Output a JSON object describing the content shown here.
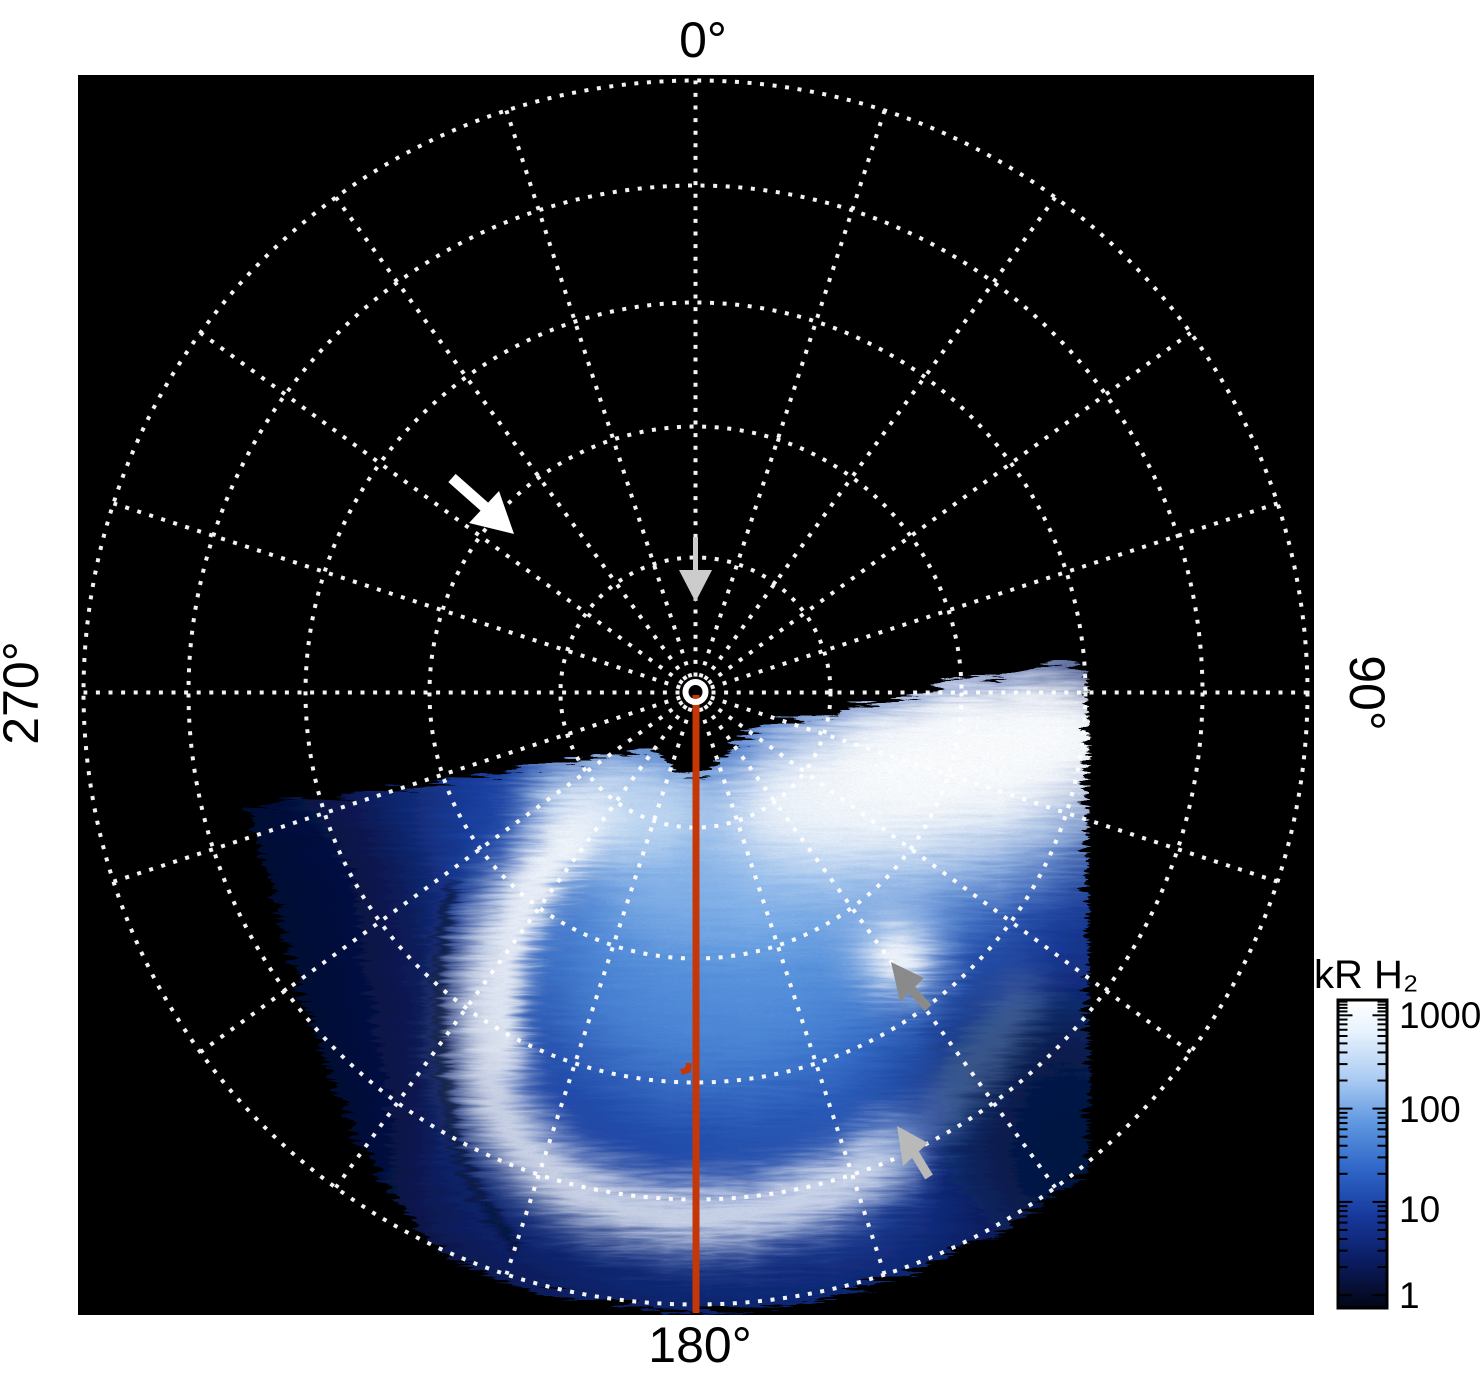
{
  "figure": {
    "plot": {
      "angle_labels": {
        "top": "0°",
        "right": "90°",
        "bottom": "180°",
        "left": "270°"
      }
    },
    "colorbar": {
      "title": "kR H₂",
      "ticks": [
        "1000",
        "100",
        "10",
        "1"
      ]
    }
  },
  "chart_data": {
    "type": "heatmap",
    "projection": "polar azimuthal, pole at center, limb at outer dotted circle",
    "title": "",
    "angular_ticks_deg": [
      0,
      90,
      180,
      270
    ],
    "angular_tick_labels": [
      "0°",
      "90°",
      "180°",
      "270°"
    ],
    "azimuthal_grid_step_deg": 18,
    "radial_circles_fraction_of_limb": [
      0.22,
      0.43,
      0.64,
      0.83,
      1.0
    ],
    "grid_style": "white dotted lines on black background",
    "colorbar": {
      "label": "kR H₂",
      "scale": "log",
      "tick_values": [
        1000,
        100,
        10,
        1
      ],
      "min": 1,
      "max": 1000,
      "colormap": "black → dark navy → blue → light blue → white"
    },
    "image_content": "H2 auroral emission image filling the sector from ~250° through 180° to ~95°: bright white main auroral arc (C-shape) left of the 180° meridian, very bright patch along the poleward boundary right of the pole, isolated bright auroral spot in the 90°–135° sector, diffuse blue emission fading to dark near the limb, jagged comb-like poleward data boundary",
    "annotations": [
      {
        "name": "white-arrow",
        "description": "large white arrow in upper-left quadrant pointing down-right toward the pole"
      },
      {
        "name": "pole-pointer-arrow",
        "color": "#cccccc",
        "description": "gray arrow on the 0° meridian pointing down at the pole marker"
      },
      {
        "name": "bright-spot-arrow",
        "color": "#8a8a8a",
        "description": "gray arrow pointing up-left at the isolated bright auroral spot"
      },
      {
        "name": "arc-edge-arrow",
        "color": "#b9b9b9",
        "description": "light gray arrow pointing up-left at the outer edge of the auroral arc"
      },
      {
        "name": "meridian-line",
        "color": "#c63708",
        "description": "red-orange line drawn from the pole along the 180° meridian to the limb"
      },
      {
        "name": "red-mark",
        "color": "#c63708",
        "description": "small red mark just left of the meridian line"
      },
      {
        "name": "pole-marker",
        "color": "#ffffff",
        "description": "solid white ring at the pole (projection center)"
      }
    ]
  }
}
